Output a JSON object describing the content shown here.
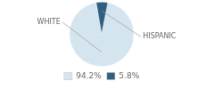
{
  "chart_data": {
    "type": "pie",
    "categories": [
      "WHITE",
      "HISPANIC"
    ],
    "values": [
      94.2,
      5.8
    ],
    "value_labels": [
      "94.2%",
      "5.8%"
    ],
    "colors": [
      "#d5e5f0",
      "#2e6080"
    ],
    "legend": "bottom"
  }
}
